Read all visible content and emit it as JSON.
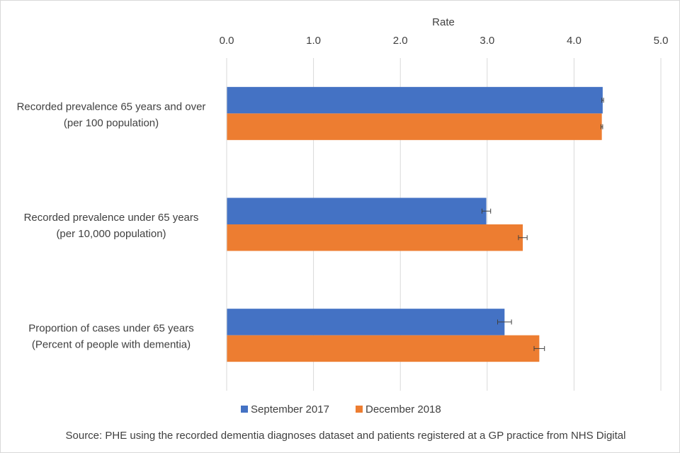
{
  "chart_data": {
    "type": "bar",
    "orientation": "horizontal",
    "xlabel": "Rate",
    "xlim": [
      0,
      5
    ],
    "ticks": [
      "0.0",
      "1.0",
      "2.0",
      "3.0",
      "4.0",
      "5.0"
    ],
    "tick_values": [
      0,
      1,
      2,
      3,
      4,
      5
    ],
    "categories": [
      [
        "Recorded prevalence 65 years and over",
        "(per 100 population)"
      ],
      [
        "Recorded prevalence under 65 years",
        "(per 10,000 population)"
      ],
      [
        "Proportion of cases under 65 years",
        "(Percent of people with dementia)"
      ]
    ],
    "series": [
      {
        "name": "September 2017",
        "color": "#4472c4",
        "values": [
          4.33,
          2.99,
          3.2
        ],
        "error": [
          0.01,
          0.05,
          0.08
        ]
      },
      {
        "name": "December 2018",
        "color": "#ed7d31",
        "values": [
          4.32,
          3.41,
          3.6
        ],
        "error": [
          0.01,
          0.05,
          0.06
        ]
      }
    ],
    "grid": "vertical",
    "legend_position": "bottom",
    "source": "Source:  PHE using the recorded dementia diagnoses dataset and patients registered at a GP practice from NHS Digital"
  }
}
